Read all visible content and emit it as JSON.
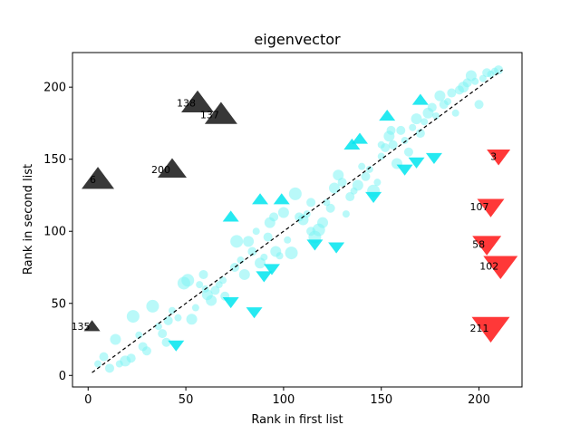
{
  "chart_data": {
    "type": "scatter",
    "title": "eigenvector",
    "xlabel": "Rank in first list",
    "ylabel": "Rank in second list",
    "xlim": [
      -8,
      222
    ],
    "ylim": [
      -8,
      224
    ],
    "xticks": [
      0,
      50,
      100,
      150,
      200
    ],
    "yticks": [
      0,
      50,
      100,
      150,
      200
    ],
    "grid": false,
    "colors": {
      "points": "#7ff4f4",
      "up": "#00e5ee",
      "down": "#00e5ee",
      "black": "#000000",
      "red": "#ff0000",
      "diagonal": "#000000"
    },
    "diagonal": {
      "x": [
        2,
        212
      ],
      "y": [
        2,
        212
      ]
    },
    "points": [
      {
        "x": 5,
        "y": 8,
        "s": 4
      },
      {
        "x": 8,
        "y": 13,
        "s": 5
      },
      {
        "x": 11,
        "y": 5,
        "s": 5
      },
      {
        "x": 14,
        "y": 25,
        "s": 6
      },
      {
        "x": 16,
        "y": 8,
        "s": 4
      },
      {
        "x": 19,
        "y": 10,
        "s": 6
      },
      {
        "x": 22,
        "y": 12,
        "s": 5
      },
      {
        "x": 23,
        "y": 41,
        "s": 7
      },
      {
        "x": 26,
        "y": 28,
        "s": 4
      },
      {
        "x": 28,
        "y": 20,
        "s": 5
      },
      {
        "x": 30,
        "y": 17,
        "s": 5
      },
      {
        "x": 33,
        "y": 48,
        "s": 7
      },
      {
        "x": 36,
        "y": 34,
        "s": 4
      },
      {
        "x": 38,
        "y": 29,
        "s": 5
      },
      {
        "x": 40,
        "y": 23,
        "s": 5
      },
      {
        "x": 41,
        "y": 38,
        "s": 5
      },
      {
        "x": 43,
        "y": 45,
        "s": 4
      },
      {
        "x": 46,
        "y": 40,
        "s": 4
      },
      {
        "x": 49,
        "y": 64,
        "s": 7
      },
      {
        "x": 51,
        "y": 66,
        "s": 7
      },
      {
        "x": 53,
        "y": 39,
        "s": 6
      },
      {
        "x": 55,
        "y": 47,
        "s": 4
      },
      {
        "x": 57,
        "y": 63,
        "s": 4
      },
      {
        "x": 59,
        "y": 70,
        "s": 5
      },
      {
        "x": 61,
        "y": 56,
        "s": 6
      },
      {
        "x": 63,
        "y": 52,
        "s": 6
      },
      {
        "x": 65,
        "y": 59,
        "s": 5
      },
      {
        "x": 67,
        "y": 63,
        "s": 4
      },
      {
        "x": 69,
        "y": 66,
        "s": 4
      },
      {
        "x": 75,
        "y": 75,
        "s": 5
      },
      {
        "x": 76,
        "y": 93,
        "s": 7
      },
      {
        "x": 78,
        "y": 80,
        "s": 4
      },
      {
        "x": 80,
        "y": 70,
        "s": 6
      },
      {
        "x": 82,
        "y": 93,
        "s": 6
      },
      {
        "x": 84,
        "y": 86,
        "s": 5
      },
      {
        "x": 86,
        "y": 100,
        "s": 4
      },
      {
        "x": 88,
        "y": 78,
        "s": 6
      },
      {
        "x": 90,
        "y": 82,
        "s": 4
      },
      {
        "x": 92,
        "y": 96,
        "s": 5
      },
      {
        "x": 93,
        "y": 106,
        "s": 6
      },
      {
        "x": 95,
        "y": 110,
        "s": 5
      },
      {
        "x": 96,
        "y": 86,
        "s": 6
      },
      {
        "x": 98,
        "y": 83,
        "s": 4
      },
      {
        "x": 100,
        "y": 113,
        "s": 6
      },
      {
        "x": 102,
        "y": 94,
        "s": 4
      },
      {
        "x": 104,
        "y": 85,
        "s": 7
      },
      {
        "x": 106,
        "y": 126,
        "s": 7
      },
      {
        "x": 108,
        "y": 110,
        "s": 5
      },
      {
        "x": 110,
        "y": 108,
        "s": 6
      },
      {
        "x": 112,
        "y": 112,
        "s": 4
      },
      {
        "x": 114,
        "y": 120,
        "s": 5
      },
      {
        "x": 116,
        "y": 96,
        "s": 7
      },
      {
        "x": 118,
        "y": 101,
        "s": 7
      },
      {
        "x": 120,
        "y": 106,
        "s": 6
      },
      {
        "x": 122,
        "y": 120,
        "s": 4
      },
      {
        "x": 124,
        "y": 116,
        "s": 5
      },
      {
        "x": 126,
        "y": 130,
        "s": 6
      },
      {
        "x": 128,
        "y": 139,
        "s": 6
      },
      {
        "x": 130,
        "y": 134,
        "s": 5
      },
      {
        "x": 132,
        "y": 112,
        "s": 4
      },
      {
        "x": 134,
        "y": 124,
        "s": 5
      },
      {
        "x": 136,
        "y": 128,
        "s": 4
      },
      {
        "x": 138,
        "y": 132,
        "s": 6
      },
      {
        "x": 140,
        "y": 145,
        "s": 4
      },
      {
        "x": 142,
        "y": 138,
        "s": 5
      },
      {
        "x": 144,
        "y": 143,
        "s": 4
      },
      {
        "x": 146,
        "y": 128,
        "s": 7
      },
      {
        "x": 148,
        "y": 134,
        "s": 4
      },
      {
        "x": 150,
        "y": 152,
        "s": 4
      },
      {
        "x": 152,
        "y": 158,
        "s": 5
      },
      {
        "x": 154,
        "y": 166,
        "s": 6
      },
      {
        "x": 156,
        "y": 160,
        "s": 5
      },
      {
        "x": 158,
        "y": 147,
        "s": 6
      },
      {
        "x": 160,
        "y": 170,
        "s": 5
      },
      {
        "x": 162,
        "y": 163,
        "s": 4
      },
      {
        "x": 164,
        "y": 155,
        "s": 5
      },
      {
        "x": 166,
        "y": 172,
        "s": 4
      },
      {
        "x": 168,
        "y": 178,
        "s": 6
      },
      {
        "x": 170,
        "y": 168,
        "s": 5
      },
      {
        "x": 172,
        "y": 176,
        "s": 4
      },
      {
        "x": 174,
        "y": 182,
        "s": 6
      },
      {
        "x": 176,
        "y": 186,
        "s": 5
      },
      {
        "x": 178,
        "y": 180,
        "s": 4
      },
      {
        "x": 180,
        "y": 194,
        "s": 6
      },
      {
        "x": 182,
        "y": 188,
        "s": 5
      },
      {
        "x": 184,
        "y": 190,
        "s": 4
      },
      {
        "x": 186,
        "y": 196,
        "s": 5
      },
      {
        "x": 188,
        "y": 182,
        "s": 4
      },
      {
        "x": 190,
        "y": 198,
        "s": 5
      },
      {
        "x": 192,
        "y": 200,
        "s": 6
      },
      {
        "x": 194,
        "y": 203,
        "s": 5
      },
      {
        "x": 196,
        "y": 208,
        "s": 6
      },
      {
        "x": 198,
        "y": 204,
        "s": 4
      },
      {
        "x": 200,
        "y": 188,
        "s": 5
      },
      {
        "x": 202,
        "y": 206,
        "s": 4
      },
      {
        "x": 204,
        "y": 210,
        "s": 5
      },
      {
        "x": 206,
        "y": 209,
        "s": 4
      },
      {
        "x": 208,
        "y": 211,
        "s": 4
      },
      {
        "x": 210,
        "y": 212,
        "s": 5
      },
      {
        "x": 60,
        "y": 60,
        "s": 4
      },
      {
        "x": 70,
        "y": 55,
        "s": 5
      },
      {
        "x": 114,
        "y": 100,
        "s": 5
      },
      {
        "x": 150,
        "y": 160,
        "s": 4
      },
      {
        "x": 155,
        "y": 170,
        "s": 5
      }
    ],
    "up_markers": [
      {
        "x": 73,
        "y": 110
      },
      {
        "x": 88,
        "y": 122
      },
      {
        "x": 99,
        "y": 122
      },
      {
        "x": 135,
        "y": 160
      },
      {
        "x": 139,
        "y": 164
      },
      {
        "x": 153,
        "y": 180
      },
      {
        "x": 170,
        "y": 191
      }
    ],
    "down_markers": [
      {
        "x": 45,
        "y": 21
      },
      {
        "x": 73,
        "y": 51
      },
      {
        "x": 85,
        "y": 44
      },
      {
        "x": 90,
        "y": 69
      },
      {
        "x": 94,
        "y": 74
      },
      {
        "x": 116,
        "y": 91
      },
      {
        "x": 127,
        "y": 89
      },
      {
        "x": 146,
        "y": 124
      },
      {
        "x": 162,
        "y": 143
      },
      {
        "x": 168,
        "y": 148
      },
      {
        "x": 177,
        "y": 151
      }
    ],
    "annotated": [
      {
        "label": "138",
        "x": 56,
        "y": 189,
        "color": "black",
        "dir": "up",
        "size": 18
      },
      {
        "label": "137",
        "x": 68,
        "y": 181,
        "color": "black",
        "dir": "up",
        "size": 18
      },
      {
        "label": "6",
        "x": 5,
        "y": 136,
        "color": "black",
        "dir": "up",
        "size": 18
      },
      {
        "label": "200",
        "x": 43,
        "y": 143,
        "color": "black",
        "dir": "up",
        "size": 16
      },
      {
        "label": "135",
        "x": 2,
        "y": 34,
        "color": "black",
        "dir": "up",
        "size": 9
      },
      {
        "label": "3",
        "x": 210,
        "y": 152,
        "color": "red",
        "dir": "down",
        "size": 13
      },
      {
        "label": "107",
        "x": 206,
        "y": 117,
        "color": "red",
        "dir": "down",
        "size": 15
      },
      {
        "label": "58",
        "x": 204,
        "y": 91,
        "color": "red",
        "dir": "down",
        "size": 16
      },
      {
        "label": "102",
        "x": 211,
        "y": 76,
        "color": "red",
        "dir": "down",
        "size": 19
      },
      {
        "label": "211",
        "x": 206,
        "y": 33,
        "color": "red",
        "dir": "down",
        "size": 21
      }
    ]
  }
}
